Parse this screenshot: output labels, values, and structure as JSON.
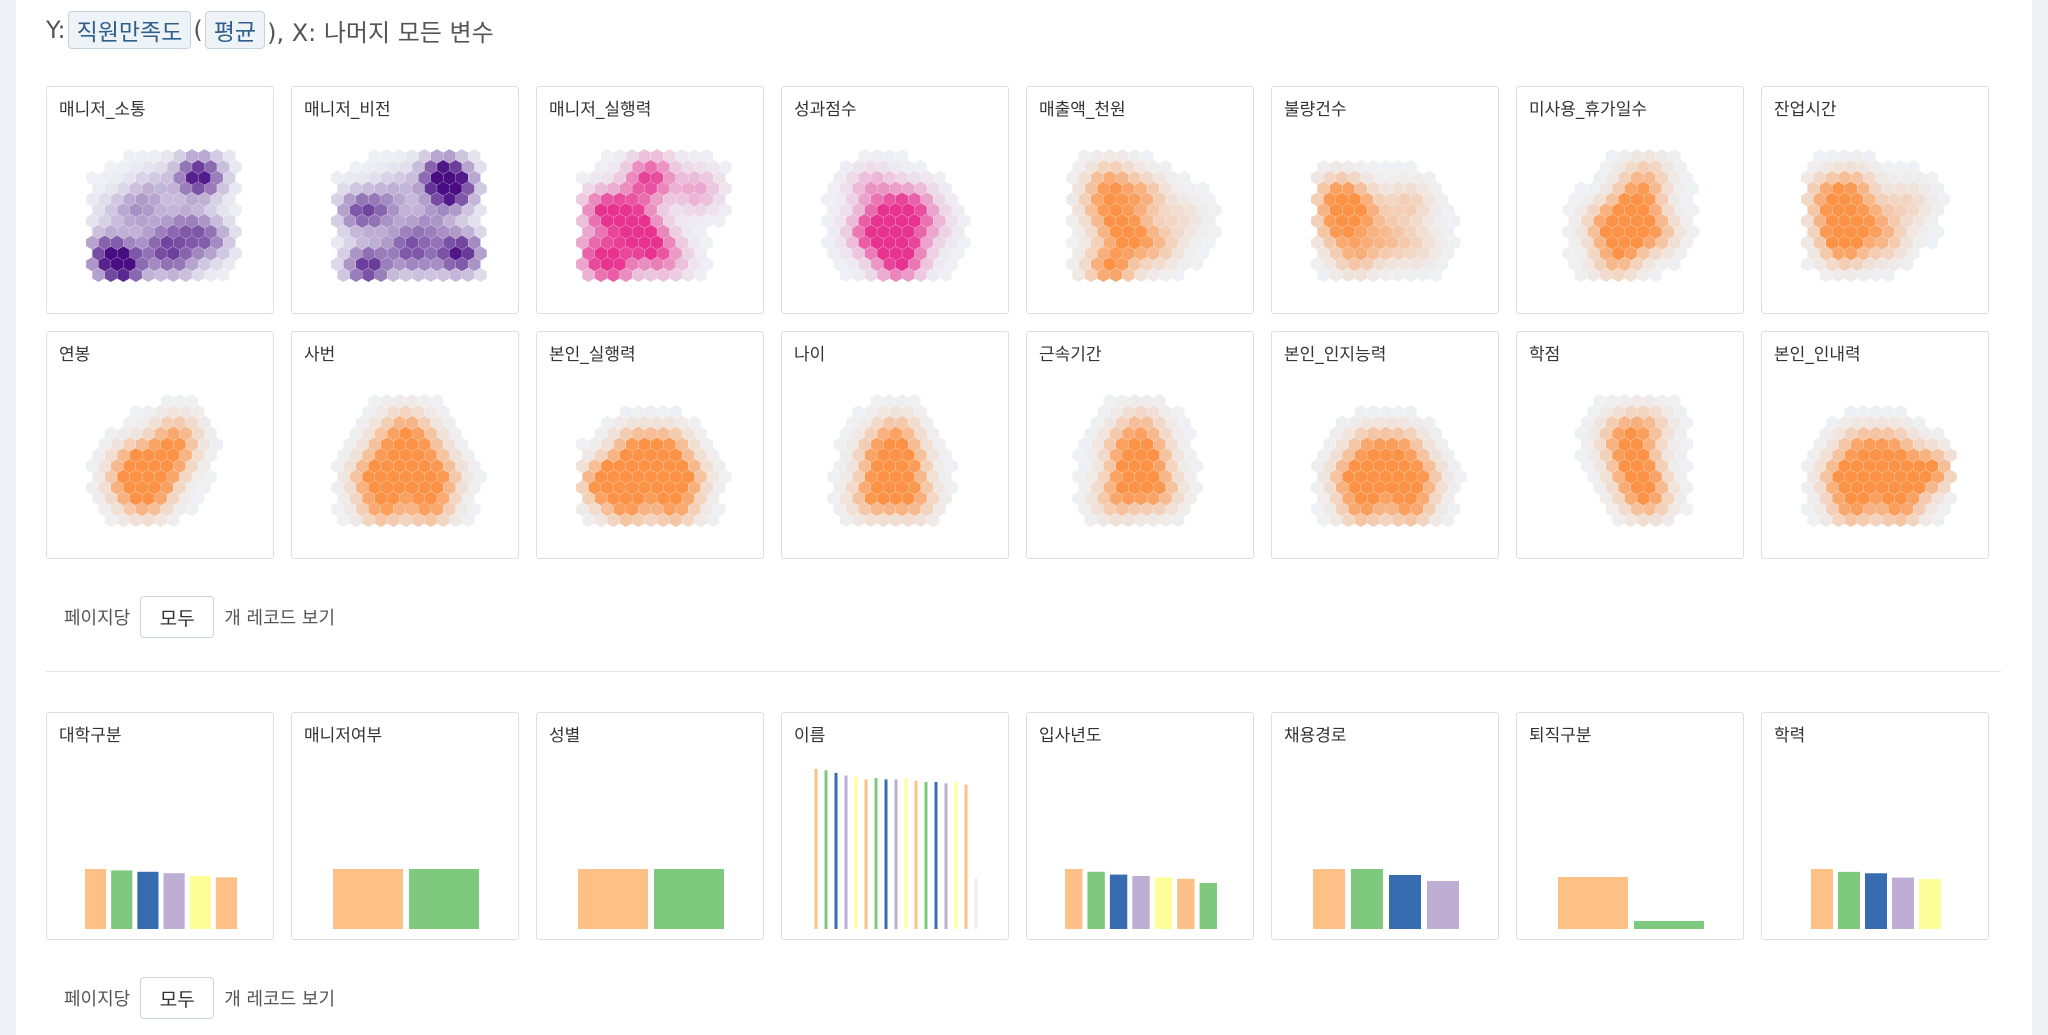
{
  "header": {
    "y_prefix": "Y:",
    "y_var": "직원만족도",
    "paren_open": "(",
    "agg": "평균",
    "x_text": "), X: 나머지 모든 변수"
  },
  "pager1": {
    "prefix": "페이지당",
    "select": "모두",
    "suffix": "개 레코드 보기"
  },
  "pager2": {
    "prefix": "페이지당",
    "select": "모두",
    "suffix": "개 레코드 보기"
  },
  "colors": {
    "hex_purple": "#3f007d",
    "hex_pink": "#e7298a",
    "hex_orange": "#fd8d3c",
    "hex_empty": "#eef1f5",
    "bar_palette": [
      "#fdc086",
      "#7fc97f",
      "#386cb0",
      "#beaed4",
      "#ffff99"
    ]
  },
  "chart_data": [
    {
      "type": "heatmap",
      "title": "매니저_소통",
      "colormap": "purple",
      "cells": [
        [
          0.2,
          0.45,
          0.1
        ],
        [
          0.5,
          0.7,
          0.45
        ],
        [
          0.8,
          0.65,
          0.5
        ],
        [
          0.65,
          0.55,
          0.35
        ],
        [
          0.35,
          0.45,
          0.3
        ],
        [
          0.15,
          0.75,
          0.6
        ],
        [
          0.25,
          0.85,
          0.85
        ],
        [
          0.75,
          0.2,
          0.9
        ],
        [
          0.45,
          0.3,
          0.2
        ],
        [
          0.6,
          0.8,
          0.4
        ]
      ]
    },
    {
      "type": "heatmap",
      "title": "매니저_비전",
      "colormap": "purple",
      "cells": [
        [
          0.2,
          0.45,
          0.6
        ],
        [
          0.5,
          0.7,
          0.5
        ],
        [
          0.8,
          0.3,
          0.8
        ],
        [
          0.65,
          0.55,
          0.35
        ],
        [
          0.35,
          0.45,
          0.3
        ],
        [
          0.85,
          0.75,
          0.9
        ],
        [
          0.25,
          0.85,
          0.8
        ],
        [
          0.75,
          0.2,
          0.95
        ],
        [
          0.45,
          0.3,
          0.2
        ],
        [
          0.6,
          0.8,
          0.3
        ]
      ]
    },
    {
      "type": "heatmap",
      "title": "매니저_실행력",
      "colormap": "pink",
      "cells": [
        [
          0.2,
          0.45,
          0.7
        ],
        [
          0.5,
          0.7,
          0.5
        ],
        [
          0.8,
          0.3,
          0.3
        ],
        [
          0.4,
          0.6,
          0.75
        ],
        [
          0.35,
          0.45,
          0.4
        ],
        [
          0.15,
          0.75,
          0.55
        ],
        [
          0.25,
          0.85,
          0.6
        ],
        [
          0.5,
          0.2,
          0.6
        ],
        [
          0.45,
          0.3,
          0.2
        ],
        [
          0.6,
          0.8,
          0.3
        ]
      ]
    },
    {
      "type": "heatmap",
      "title": "성과점수",
      "colormap": "pink",
      "cells": [
        [
          0.5,
          0.5,
          0.55
        ],
        [
          0.4,
          0.6,
          0.45
        ],
        [
          0.6,
          0.4,
          0.3
        ],
        [
          0.55,
          0.75,
          0.4
        ],
        [
          0.35,
          0.3,
          0.25
        ],
        [
          0.45,
          0.65,
          0.35
        ],
        [
          0.5,
          0.85,
          0.25
        ],
        [
          0.3,
          0.6,
          0.15
        ],
        [
          0.7,
          0.55,
          0.2
        ]
      ]
    },
    {
      "type": "heatmap",
      "title": "매출액_천원",
      "colormap": "orange",
      "cells": [
        [
          0.3,
          0.85,
          0.45
        ],
        [
          0.35,
          0.55,
          0.35
        ],
        [
          0.5,
          0.35,
          0.3
        ],
        [
          0.3,
          0.25,
          0.3
        ],
        [
          0.45,
          0.65,
          0.3
        ],
        [
          0.6,
          0.7,
          0.2
        ],
        [
          0.75,
          0.5,
          0.1
        ],
        [
          0.25,
          0.4,
          0.25
        ]
      ]
    },
    {
      "type": "heatmap",
      "title": "불량건수",
      "colormap": "orange",
      "cells": [
        [
          0.2,
          0.35,
          0.4
        ],
        [
          0.2,
          0.55,
          0.35
        ],
        [
          0.35,
          0.45,
          0.25
        ],
        [
          0.5,
          0.65,
          0.2
        ],
        [
          0.65,
          0.4,
          0.15
        ],
        [
          0.3,
          0.75,
          0.25
        ],
        [
          0.7,
          0.7,
          0.1
        ]
      ]
    },
    {
      "type": "heatmap",
      "title": "미사용_휴가일수",
      "colormap": "orange",
      "cells": [
        [
          0.5,
          0.5,
          0.4
        ],
        [
          0.45,
          0.65,
          0.35
        ],
        [
          0.55,
          0.35,
          0.3
        ],
        [
          0.35,
          0.55,
          0.25
        ],
        [
          0.65,
          0.6,
          0.25
        ],
        [
          0.4,
          0.8,
          0.2
        ],
        [
          0.6,
          0.2,
          0.15
        ]
      ]
    },
    {
      "type": "heatmap",
      "title": "잔업시간",
      "colormap": "orange",
      "cells": [
        [
          0.25,
          0.55,
          0.4
        ],
        [
          0.3,
          0.7,
          0.35
        ],
        [
          0.45,
          0.5,
          0.25
        ],
        [
          0.35,
          0.3,
          0.25
        ],
        [
          0.55,
          0.65,
          0.2
        ],
        [
          0.7,
          0.4,
          0.12
        ],
        [
          0.2,
          0.35,
          0.3
        ]
      ]
    },
    {
      "type": "heatmap",
      "title": "연봉",
      "colormap": "orange",
      "cells": [
        [
          0.45,
          0.6,
          0.35
        ],
        [
          0.35,
          0.5,
          0.3
        ],
        [
          0.55,
          0.45,
          0.3
        ],
        [
          0.4,
          0.75,
          0.25
        ],
        [
          0.6,
          0.3,
          0.2
        ],
        [
          0.3,
          0.65,
          0.25
        ]
      ]
    },
    {
      "type": "heatmap",
      "title": "사번",
      "colormap": "orange",
      "cells": [
        [
          0.3,
          0.6,
          0.35
        ],
        [
          0.5,
          0.6,
          0.3
        ],
        [
          0.7,
          0.6,
          0.3
        ],
        [
          0.4,
          0.4,
          0.25
        ],
        [
          0.6,
          0.4,
          0.25
        ],
        [
          0.35,
          0.8,
          0.3
        ],
        [
          0.65,
          0.8,
          0.3
        ],
        [
          0.5,
          0.25,
          0.2
        ]
      ]
    },
    {
      "type": "heatmap",
      "title": "본인_실행력",
      "colormap": "orange",
      "cells": [
        [
          0.3,
          0.6,
          0.3
        ],
        [
          0.5,
          0.6,
          0.3
        ],
        [
          0.7,
          0.6,
          0.3
        ],
        [
          0.4,
          0.4,
          0.25
        ],
        [
          0.6,
          0.4,
          0.25
        ],
        [
          0.35,
          0.8,
          0.25
        ],
        [
          0.65,
          0.8,
          0.25
        ],
        [
          0.2,
          0.65,
          0.3
        ]
      ]
    },
    {
      "type": "heatmap",
      "title": "나이",
      "colormap": "orange",
      "cells": [
        [
          0.45,
          0.65,
          0.4
        ],
        [
          0.55,
          0.5,
          0.35
        ],
        [
          0.4,
          0.45,
          0.3
        ],
        [
          0.6,
          0.75,
          0.3
        ],
        [
          0.35,
          0.75,
          0.25
        ],
        [
          0.5,
          0.3,
          0.25
        ]
      ]
    },
    {
      "type": "heatmap",
      "title": "근속기간",
      "colormap": "orange",
      "cells": [
        [
          0.45,
          0.6,
          0.4
        ],
        [
          0.55,
          0.45,
          0.3
        ],
        [
          0.4,
          0.4,
          0.25
        ],
        [
          0.6,
          0.7,
          0.3
        ],
        [
          0.35,
          0.75,
          0.25
        ],
        [
          0.5,
          0.25,
          0.2
        ]
      ]
    },
    {
      "type": "heatmap",
      "title": "본인_인지능력",
      "colormap": "orange",
      "cells": [
        [
          0.3,
          0.6,
          0.35
        ],
        [
          0.5,
          0.6,
          0.3
        ],
        [
          0.7,
          0.6,
          0.3
        ],
        [
          0.4,
          0.4,
          0.25
        ],
        [
          0.6,
          0.4,
          0.25
        ],
        [
          0.35,
          0.8,
          0.3
        ],
        [
          0.65,
          0.8,
          0.3
        ]
      ]
    },
    {
      "type": "heatmap",
      "title": "학점",
      "colormap": "orange",
      "cells": [
        [
          0.55,
          0.6,
          0.4
        ],
        [
          0.5,
          0.45,
          0.3
        ],
        [
          0.6,
          0.75,
          0.3
        ],
        [
          0.45,
          0.3,
          0.25
        ],
        [
          0.6,
          0.25,
          0.2
        ]
      ]
    },
    {
      "type": "heatmap",
      "title": "본인_인내력",
      "colormap": "orange",
      "cells": [
        [
          0.3,
          0.6,
          0.35
        ],
        [
          0.5,
          0.6,
          0.3
        ],
        [
          0.7,
          0.6,
          0.35
        ],
        [
          0.4,
          0.4,
          0.25
        ],
        [
          0.6,
          0.4,
          0.25
        ],
        [
          0.35,
          0.8,
          0.3
        ],
        [
          0.65,
          0.8,
          0.3
        ],
        [
          0.85,
          0.55,
          0.3
        ]
      ]
    },
    {
      "type": "bar",
      "title": "대학구분",
      "values": [
        4.3,
        4.2,
        4.1,
        4.0,
        3.8,
        3.7
      ]
    },
    {
      "type": "bar",
      "title": "매니저여부",
      "values": [
        3.9,
        3.9
      ]
    },
    {
      "type": "bar",
      "title": "성별",
      "values": [
        3.9,
        3.9
      ]
    },
    {
      "type": "bar",
      "title": "이름",
      "values": [
        12.3,
        12.2,
        12.0,
        11.8,
        11.7,
        11.5,
        11.6,
        11.5,
        11.5,
        11.6,
        11.4,
        11.3,
        11.3,
        11.2,
        11.3,
        11.1,
        3.9
      ]
    },
    {
      "type": "bar",
      "title": "입사년도",
      "values": [
        4.3,
        4.1,
        3.9,
        3.8,
        3.7,
        3.6,
        3.3
      ]
    },
    {
      "type": "bar",
      "title": "채용경로",
      "values": [
        4.0,
        4.0,
        3.6,
        3.2
      ]
    },
    {
      "type": "bar",
      "title": "퇴직구분",
      "values": [
        4.2,
        0.6
      ]
    },
    {
      "type": "bar",
      "title": "학력",
      "values": [
        4.2,
        4.0,
        3.9,
        3.6,
        3.5
      ]
    }
  ]
}
